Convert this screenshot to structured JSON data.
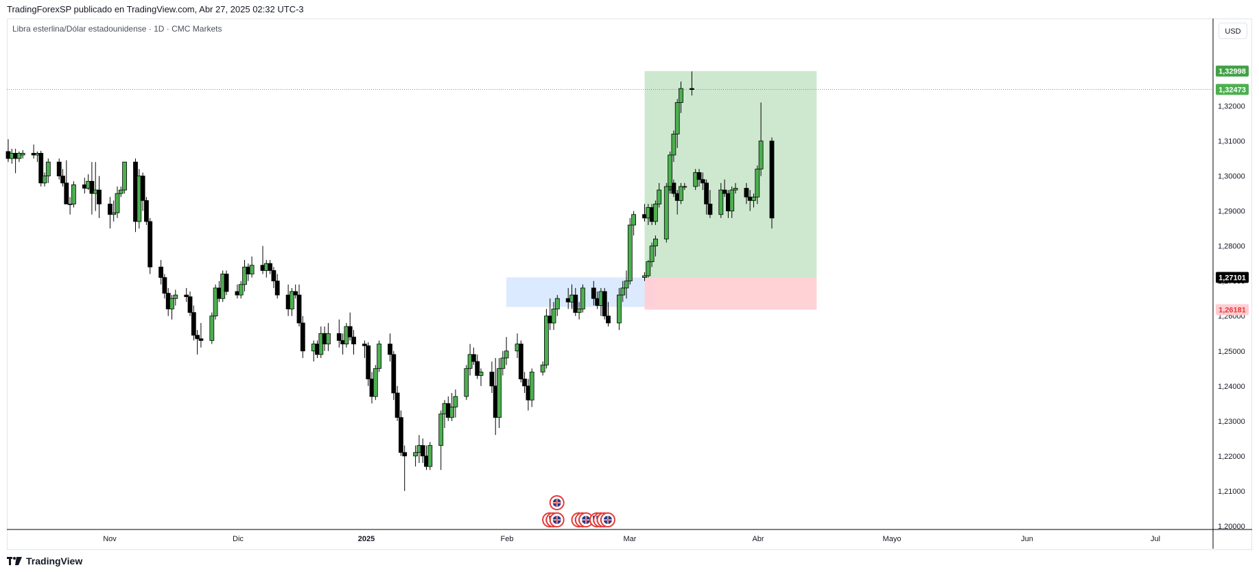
{
  "header": {
    "published_by": "TradingForexSP publicado en TradingView.com, Abr 27, 2025 02:32 UTC-3"
  },
  "symbol": {
    "title": "Libra esterlina/Dólar estadounidense · 1D · CMC Markets"
  },
  "currency_button": "USD",
  "footer": {
    "brand": "TradingView"
  },
  "colors": {
    "up": "#4caf50",
    "down": "#000000",
    "profit_zone": "#c8e6c9",
    "loss_zone": "#ffcdd2",
    "order_block": "#dbeafe",
    "current_line": "#4caf50"
  },
  "chart_data": {
    "type": "candlestick",
    "title": "Libra esterlina/Dólar estadounidense · 1D · CMC Markets",
    "x_tick_labels": [
      "Nov",
      "Dic",
      "2025",
      "Feb",
      "Mar",
      "Abr",
      "Mayo",
      "Jun",
      "Jul"
    ],
    "y_tick_labels": [
      "1,32000",
      "1,31000",
      "1,30000",
      "1,29000",
      "1,28000",
      "1,27000",
      "1,26000",
      "1,25000",
      "1,24000",
      "1,23000",
      "1,22000",
      "1,21000",
      "1,20000"
    ],
    "ylim": [
      1.199,
      1.345
    ],
    "xlim_days_range": [
      "2024-10-14",
      "2025-07-20"
    ],
    "price_tags": [
      {
        "value": 1.32998,
        "label": "1,32998",
        "color": "#43a047",
        "text_color": "#ffffff"
      },
      {
        "value": 1.32473,
        "label": "1,32473",
        "color": "#4caf50",
        "text_color": "#ffffff"
      },
      {
        "value": 1.27101,
        "label": "1,27101",
        "color": "#000000",
        "text_color": "#ffffff"
      },
      {
        "value": 1.26181,
        "label": "1,26181",
        "color": "#ffcdd2",
        "text_color": "#e53935"
      }
    ],
    "current_price": 1.32473,
    "position": {
      "type": "long",
      "start": "2025-04-07",
      "end": "2025-05-13",
      "entry": 1.27101,
      "target": 1.32998,
      "stop": 1.26181
    },
    "order_block": {
      "start": "2025-02-28",
      "end": "2025-04-10",
      "top": 1.27101,
      "bottom": 1.2626
    },
    "event_markers": [
      {
        "date": "2025-04-17",
        "row": 1,
        "icon": "uk-flag-icon"
      },
      {
        "date": "2025-04-15",
        "row": 0,
        "icon": "uk-flag-icon"
      },
      {
        "date": "2025-04-16",
        "row": 0,
        "icon": "us-flag-icon"
      },
      {
        "date": "2025-04-17",
        "row": 0,
        "icon": "uk-flag-icon"
      },
      {
        "date": "2025-04-23",
        "row": 0,
        "icon": "uk-flag-icon"
      },
      {
        "date": "2025-04-24",
        "row": 0,
        "icon": "uk-flag-icon"
      },
      {
        "date": "2025-04-25",
        "row": 0,
        "icon": "uk-flag-icon"
      },
      {
        "date": "2025-04-28",
        "row": 0,
        "icon": "us-flag-icon"
      },
      {
        "date": "2025-04-29",
        "row": 0,
        "icon": "us-flag-icon"
      },
      {
        "date": "2025-04-30",
        "row": 0,
        "icon": "uk-flag-icon"
      },
      {
        "date": "2025-05-01",
        "row": 0,
        "icon": "uk-flag-icon"
      }
    ],
    "candles": [
      [
        "2024-10-14",
        1.307,
        1.3105,
        1.304,
        1.305
      ],
      [
        "2024-10-15",
        1.305,
        1.3078,
        1.3035,
        1.3065
      ],
      [
        "2024-10-16",
        1.3065,
        1.3078,
        1.3008,
        1.305
      ],
      [
        "2024-10-17",
        1.305,
        1.307,
        1.304,
        1.3065
      ],
      [
        "2024-10-18",
        1.306,
        1.3074,
        1.305,
        1.3065
      ],
      [
        "2024-10-21",
        1.3065,
        1.309,
        1.305,
        1.306
      ],
      [
        "2024-10-22",
        1.306,
        1.307,
        1.304,
        1.3065
      ],
      [
        "2024-10-23",
        1.3065,
        1.3072,
        1.297,
        1.298
      ],
      [
        "2024-10-24",
        1.298,
        1.301,
        1.297,
        1.3
      ],
      [
        "2024-10-25",
        1.3,
        1.305,
        1.298,
        1.304
      ],
      [
        "2024-10-28",
        1.304,
        1.305,
        1.299,
        1.3
      ],
      [
        "2024-10-29",
        1.3,
        1.302,
        1.297,
        1.298
      ],
      [
        "2024-10-30",
        1.298,
        1.3045,
        1.293,
        1.292
      ],
      [
        "2024-10-31",
        1.292,
        1.294,
        1.289,
        1.292
      ],
      [
        "2024-11-01",
        1.292,
        1.2985,
        1.291,
        1.2975
      ],
      [
        "2024-11-04",
        1.2975,
        1.2995,
        1.295,
        1.2965
      ],
      [
        "2024-11-05",
        1.2965,
        1.3005,
        1.296,
        1.2985
      ],
      [
        "2024-11-06",
        1.2985,
        1.304,
        1.289,
        1.295
      ],
      [
        "2024-11-07",
        1.295,
        1.304,
        1.29,
        1.296
      ],
      [
        "2024-11-08",
        1.296,
        1.3,
        1.288,
        1.292
      ],
      [
        "2024-11-11",
        1.292,
        1.294,
        1.285,
        1.289
      ],
      [
        "2024-11-12",
        1.289,
        1.293,
        1.287,
        1.2895
      ],
      [
        "2024-11-13",
        1.2895,
        1.297,
        1.288,
        1.295
      ],
      [
        "2024-11-14",
        1.295,
        1.297,
        1.294,
        1.296
      ],
      [
        "2024-11-15",
        1.296,
        1.304,
        1.295,
        1.304
      ],
      [
        "2024-11-18",
        1.304,
        1.305,
        1.284,
        1.287
      ],
      [
        "2024-11-19",
        1.287,
        1.302,
        1.285,
        1.3
      ],
      [
        "2024-11-20",
        1.3,
        1.301,
        1.29,
        1.293
      ],
      [
        "2024-11-21",
        1.293,
        1.294,
        1.286,
        1.287
      ],
      [
        "2024-11-22",
        1.287,
        1.288,
        1.272,
        1.274
      ],
      [
        "2024-11-25",
        1.274,
        1.276,
        1.269,
        1.271
      ],
      [
        "2024-11-26",
        1.271,
        1.272,
        1.265,
        1.2665
      ],
      [
        "2024-11-27",
        1.2665,
        1.268,
        1.26,
        1.262
      ],
      [
        "2024-11-28",
        1.262,
        1.266,
        1.259,
        1.265
      ],
      [
        "2024-11-29",
        1.265,
        1.2675,
        1.263,
        1.266
      ],
      [
        "2024-12-02",
        1.266,
        1.268,
        1.264,
        1.2655
      ],
      [
        "2024-12-03",
        1.2655,
        1.267,
        1.26,
        1.261
      ],
      [
        "2024-12-04",
        1.261,
        1.263,
        1.253,
        1.2545
      ],
      [
        "2024-12-05",
        1.2545,
        1.256,
        1.249,
        1.2535
      ],
      [
        "2024-12-06",
        1.2535,
        1.258,
        1.251,
        1.253
      ],
      [
        "2024-12-09",
        1.253,
        1.261,
        1.252,
        1.26
      ],
      [
        "2024-12-10",
        1.26,
        1.269,
        1.259,
        1.268
      ],
      [
        "2024-12-11",
        1.268,
        1.27,
        1.264,
        1.265
      ],
      [
        "2024-12-12",
        1.265,
        1.273,
        1.264,
        1.272
      ],
      [
        "2024-12-13",
        1.272,
        1.273,
        1.266,
        1.267
      ],
      [
        "2024-12-16",
        1.267,
        1.269,
        1.265,
        1.266
      ],
      [
        "2024-12-17",
        1.266,
        1.27,
        1.265,
        1.269
      ],
      [
        "2024-12-18",
        1.269,
        1.276,
        1.267,
        1.274
      ],
      [
        "2024-12-19",
        1.274,
        1.275,
        1.27,
        1.272
      ],
      [
        "2024-12-20",
        1.272,
        1.277,
        1.271,
        1.2745
      ],
      [
        "2024-12-23",
        1.2745,
        1.28,
        1.272,
        1.273
      ],
      [
        "2024-12-24",
        1.273,
        1.276,
        1.271,
        1.275
      ],
      [
        "2024-12-25",
        1.275,
        1.276,
        1.272,
        1.273
      ],
      [
        "2024-12-26",
        1.273,
        1.274,
        1.268,
        1.27
      ],
      [
        "2024-12-27",
        1.27,
        1.272,
        1.265,
        1.266
      ],
      [
        "2024-12-30",
        1.266,
        1.269,
        1.26,
        1.262
      ],
      [
        "2024-12-31",
        1.262,
        1.268,
        1.26,
        1.267
      ],
      [
        "2025-01-01",
        1.267,
        1.269,
        1.265,
        1.266
      ],
      [
        "2025-01-02",
        1.266,
        1.269,
        1.257,
        1.258
      ],
      [
        "2025-01-03",
        1.258,
        1.26,
        1.248,
        1.25
      ],
      [
        "2025-01-06",
        1.25,
        1.253,
        1.247,
        1.252
      ],
      [
        "2025-01-07",
        1.252,
        1.253,
        1.248,
        1.249
      ],
      [
        "2025-01-08",
        1.249,
        1.257,
        1.248,
        1.255
      ],
      [
        "2025-01-09",
        1.255,
        1.257,
        1.25,
        1.252
      ],
      [
        "2025-01-10",
        1.252,
        1.258,
        1.25,
        1.255
      ],
      [
        "2025-01-13",
        1.255,
        1.259,
        1.251,
        1.253
      ],
      [
        "2025-01-14",
        1.253,
        1.255,
        1.249,
        1.252
      ],
      [
        "2025-01-15",
        1.252,
        1.258,
        1.251,
        1.257
      ],
      [
        "2025-01-16",
        1.257,
        1.261,
        1.253,
        1.254
      ],
      [
        "2025-01-17",
        1.254,
        1.256,
        1.249,
        1.252
      ],
      [
        "2025-01-20",
        1.252,
        1.253,
        1.248,
        1.2515
      ],
      [
        "2025-01-21",
        1.2515,
        1.2525,
        1.24,
        1.242
      ],
      [
        "2025-01-22",
        1.242,
        1.244,
        1.235,
        1.237
      ],
      [
        "2025-01-23",
        1.237,
        1.246,
        1.236,
        1.245
      ],
      [
        "2025-01-24",
        1.245,
        1.253,
        1.244,
        1.252
      ],
      [
        "2025-01-27",
        1.252,
        1.255,
        1.247,
        1.249
      ],
      [
        "2025-01-28",
        1.249,
        1.25,
        1.236,
        1.238
      ],
      [
        "2025-01-29",
        1.238,
        1.24,
        1.23,
        1.231
      ],
      [
        "2025-01-30",
        1.231,
        1.233,
        1.22,
        1.221
      ],
      [
        "2025-01-31",
        1.221,
        1.223,
        1.21,
        1.22
      ],
      [
        "2025-02-03",
        1.22,
        1.223,
        1.217,
        1.221
      ],
      [
        "2025-02-04",
        1.221,
        1.226,
        1.218,
        1.223
      ],
      [
        "2025-02-05",
        1.223,
        1.225,
        1.218,
        1.22
      ],
      [
        "2025-02-06",
        1.22,
        1.223,
        1.216,
        1.217
      ],
      [
        "2025-02-07",
        1.217,
        1.224,
        1.216,
        1.223
      ],
      [
        "2025-02-10",
        1.223,
        1.233,
        1.216,
        1.232
      ],
      [
        "2025-02-11",
        1.232,
        1.236,
        1.228,
        1.235
      ],
      [
        "2025-02-12",
        1.235,
        1.237,
        1.23,
        1.231
      ],
      [
        "2025-02-13",
        1.231,
        1.238,
        1.23,
        1.234
      ],
      [
        "2025-02-14",
        1.234,
        1.239,
        1.231,
        1.237
      ],
      [
        "2025-02-17",
        1.237,
        1.246,
        1.236,
        1.245
      ],
      [
        "2025-02-18",
        1.245,
        1.252,
        1.243,
        1.249
      ],
      [
        "2025-02-19",
        1.249,
        1.251,
        1.246,
        1.247
      ],
      [
        "2025-02-20",
        1.247,
        1.249,
        1.242,
        1.243
      ],
      [
        "2025-02-21",
        1.243,
        1.245,
        1.24,
        1.244
      ],
      [
        "2025-02-24",
        1.244,
        1.247,
        1.238,
        1.24
      ],
      [
        "2025-02-25",
        1.24,
        1.248,
        1.226,
        1.231
      ],
      [
        "2025-02-26",
        1.231,
        1.248,
        1.228,
        1.245
      ],
      [
        "2025-02-27",
        1.245,
        1.25,
        1.243,
        1.248
      ],
      [
        "2025-02-28",
        1.248,
        1.254,
        1.246,
        1.25
      ],
      [
        "2025-03-03",
        1.25,
        1.255,
        1.248,
        1.252
      ],
      [
        "2025-03-04",
        1.252,
        1.253,
        1.241,
        1.242
      ],
      [
        "2025-03-05",
        1.242,
        1.244,
        1.238,
        1.24
      ],
      [
        "2025-03-06",
        1.24,
        1.242,
        1.233,
        1.236
      ],
      [
        "2025-03-07",
        1.236,
        1.245,
        1.234,
        1.244
      ],
      [
        "2025-03-10",
        1.244,
        1.247,
        1.243,
        1.246
      ],
      [
        "2025-03-11",
        1.246,
        1.262,
        1.245,
        1.26
      ],
      [
        "2025-03-12",
        1.26,
        1.265,
        1.256,
        1.258
      ],
      [
        "2025-03-13",
        1.258,
        1.264,
        1.256,
        1.262
      ],
      [
        "2025-03-14",
        1.262,
        1.266,
        1.26,
        1.265
      ],
      [
        "2025-03-17",
        1.265,
        1.268,
        1.262,
        1.264
      ],
      [
        "2025-03-18",
        1.264,
        1.269,
        1.262,
        1.266
      ],
      [
        "2025-03-19",
        1.266,
        1.268,
        1.26,
        1.261
      ],
      [
        "2025-03-20",
        1.261,
        1.264,
        1.259,
        1.262
      ],
      [
        "2025-03-21",
        1.262,
        1.269,
        1.261,
        1.268
      ],
      [
        "2025-03-24",
        1.268,
        1.27,
        1.263,
        1.265
      ],
      [
        "2025-03-25",
        1.265,
        1.267,
        1.262,
        1.263
      ],
      [
        "2025-03-26",
        1.263,
        1.268,
        1.26,
        1.267
      ],
      [
        "2025-03-27",
        1.267,
        1.268,
        1.259,
        1.26
      ],
      [
        "2025-03-28",
        1.26,
        1.264,
        1.257,
        1.258
      ],
      [
        "2025-03-31",
        1.258,
        1.268,
        1.256,
        1.266
      ],
      [
        "2025-04-01",
        1.266,
        1.27,
        1.264,
        1.268
      ],
      [
        "2025-04-02",
        1.268,
        1.273,
        1.265,
        1.27
      ],
      [
        "2025-04-03",
        1.27,
        1.288,
        1.269,
        1.286
      ],
      [
        "2025-04-04",
        1.286,
        1.29,
        1.283,
        1.289
      ],
      [
        "2025-04-07",
        1.289,
        1.292,
        1.287,
        1.288
      ],
      [
        "2025-04-08",
        1.288,
        1.292,
        1.286,
        1.291
      ],
      [
        "2025-04-09",
        1.291,
        1.292,
        1.286,
        1.287
      ],
      [
        "2025-04-10",
        1.287,
        1.293,
        1.286,
        1.292
      ],
      [
        "2025-04-11",
        1.292,
        1.298,
        1.291,
        1.296
      ],
      [
        "2025-04-14",
        1.296,
        1.299,
        1.295,
        1.298
      ],
      [
        "2025-04-15",
        1.298,
        1.299,
        1.294,
        1.295
      ],
      [
        "2025-04-16",
        1.295,
        1.296,
        1.289,
        1.293
      ],
      [
        "2025-04-17",
        1.293,
        1.298,
        1.292,
        1.297
      ],
      [
        "2025-04-18",
        1.297,
        1.298,
        1.296,
        1.297
      ],
      [
        "2025-04-21",
        1.297,
        1.302,
        1.296,
        1.301
      ],
      [
        "2025-04-22",
        1.301,
        1.302,
        1.297,
        1.299
      ],
      [
        "2025-04-23",
        1.299,
        1.301,
        1.296,
        1.298
      ],
      [
        "2025-04-24",
        1.298,
        1.299,
        1.289,
        1.292
      ],
      [
        "2025-04-25",
        1.292,
        1.296,
        1.288,
        1.289
      ],
      [
        "2025-04-28",
        1.289,
        1.298,
        1.288,
        1.296
      ],
      [
        "2025-04-29",
        1.296,
        1.299,
        1.294,
        1.295
      ],
      [
        "2025-04-30",
        1.295,
        1.296,
        1.288,
        1.29
      ],
      [
        "2025-05-01",
        1.29,
        1.297,
        1.288,
        1.296
      ],
      [
        "2025-05-02",
        1.296,
        1.298,
        1.295,
        1.2965
      ],
      [
        "2025-05-05",
        1.2965,
        1.298,
        1.292,
        1.294
      ],
      [
        "2025-05-06",
        1.294,
        1.296,
        1.29,
        1.293
      ],
      [
        "2025-05-07",
        1.293,
        1.295,
        1.291,
        1.294
      ],
      [
        "2025-05-08",
        1.294,
        1.303,
        1.292,
        1.302
      ],
      [
        "2025-05-09",
        1.302,
        1.321,
        1.3,
        1.31
      ],
      [
        "2025-05-12",
        1.31,
        1.311,
        1.285,
        1.288
      ]
    ],
    "candles_after_break": [
      [
        "2025-05-13",
        1.271,
        1.2725,
        1.27,
        1.2715
      ],
      [
        "2025-05-14",
        1.2715,
        1.276,
        1.271,
        1.2755
      ],
      [
        "2025-05-15",
        1.2755,
        1.281,
        1.274,
        1.28
      ],
      [
        "2025-05-16",
        1.28,
        1.283,
        1.277,
        1.282
      ],
      [
        "2025-05-19",
        1.282,
        1.298,
        1.281,
        1.297
      ],
      [
        "2025-05-20",
        1.297,
        1.307,
        1.295,
        1.306
      ],
      [
        "2025-05-21",
        1.306,
        1.313,
        1.304,
        1.312
      ],
      [
        "2025-05-22",
        1.312,
        1.322,
        1.308,
        1.321
      ],
      [
        "2025-05-23",
        1.321,
        1.327,
        1.318,
        1.325
      ],
      [
        "2025-05-26",
        1.325,
        1.3299,
        1.323,
        1.3247
      ]
    ]
  }
}
